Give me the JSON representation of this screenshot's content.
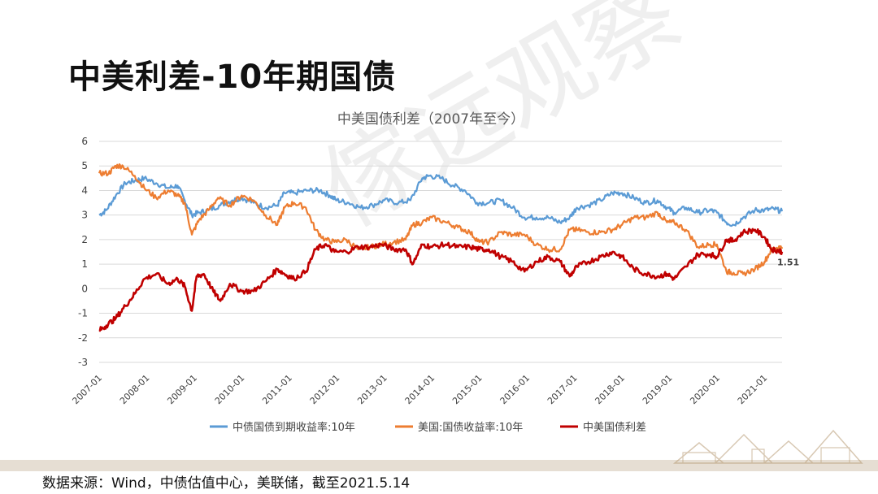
{
  "slide": {
    "title": "中美利差-10年期国债",
    "source": "数据来源：Wind，中债估值中心，美联储，截至2021.5.14",
    "watermark": "傢远观察"
  },
  "colors": {
    "china": "#5b9bd5",
    "us": "#ed7d31",
    "spread": "#c00000",
    "grid": "#d9d9d9",
    "axis_text": "#404040"
  },
  "chart_data": {
    "type": "line",
    "title": "中美国债利差（2007年至今）",
    "ylim": [
      -3,
      6
    ],
    "yticks": [
      6,
      5,
      4,
      3,
      2,
      1,
      0,
      -1,
      -2,
      -3
    ],
    "xlim": [
      2007.0,
      2021.37
    ],
    "xticks": [
      {
        "label": "2007-01",
        "value": 2007
      },
      {
        "label": "2008-01",
        "value": 2008
      },
      {
        "label": "2009-01",
        "value": 2009
      },
      {
        "label": "2010-01",
        "value": 2010
      },
      {
        "label": "2011-01",
        "value": 2011
      },
      {
        "label": "2012-01",
        "value": 2012
      },
      {
        "label": "2013-01",
        "value": 2013
      },
      {
        "label": "2014-01",
        "value": 2014
      },
      {
        "label": "2015-01",
        "value": 2015
      },
      {
        "label": "2016-01",
        "value": 2016
      },
      {
        "label": "2017-01",
        "value": 2017
      },
      {
        "label": "2018-01",
        "value": 2018
      },
      {
        "label": "2019-01",
        "value": 2019
      },
      {
        "label": "2020-01",
        "value": 2020
      },
      {
        "label": "2021-01",
        "value": 2021
      }
    ],
    "grid": true,
    "legend": "bottom",
    "end_label": "1.51",
    "series": [
      {
        "name": "中债国债到期收益率:10年",
        "color_key": "china",
        "points": [
          [
            2007.0,
            3.0
          ],
          [
            2007.15,
            3.2
          ],
          [
            2007.35,
            3.8
          ],
          [
            2007.55,
            4.3
          ],
          [
            2007.75,
            4.4
          ],
          [
            2007.95,
            4.5
          ],
          [
            2008.2,
            4.3
          ],
          [
            2008.45,
            4.1
          ],
          [
            2008.65,
            4.2
          ],
          [
            2008.8,
            3.6
          ],
          [
            2008.95,
            3.0
          ],
          [
            2009.1,
            3.1
          ],
          [
            2009.3,
            3.2
          ],
          [
            2009.55,
            3.4
          ],
          [
            2009.8,
            3.6
          ],
          [
            2010.0,
            3.7
          ],
          [
            2010.25,
            3.5
          ],
          [
            2010.5,
            3.3
          ],
          [
            2010.75,
            3.4
          ],
          [
            2010.9,
            3.9
          ],
          [
            2011.1,
            3.9
          ],
          [
            2011.4,
            4.0
          ],
          [
            2011.65,
            4.0
          ],
          [
            2011.85,
            3.8
          ],
          [
            2012.0,
            3.6
          ],
          [
            2012.25,
            3.5
          ],
          [
            2012.5,
            3.3
          ],
          [
            2012.75,
            3.4
          ],
          [
            2013.0,
            3.6
          ],
          [
            2013.3,
            3.5
          ],
          [
            2013.55,
            3.6
          ],
          [
            2013.8,
            4.5
          ],
          [
            2013.95,
            4.6
          ],
          [
            2014.2,
            4.5
          ],
          [
            2014.45,
            4.2
          ],
          [
            2014.7,
            4.0
          ],
          [
            2014.95,
            3.5
          ],
          [
            2015.2,
            3.5
          ],
          [
            2015.45,
            3.6
          ],
          [
            2015.7,
            3.3
          ],
          [
            2015.95,
            2.9
          ],
          [
            2016.2,
            2.9
          ],
          [
            2016.45,
            2.9
          ],
          [
            2016.7,
            2.7
          ],
          [
            2016.9,
            2.9
          ],
          [
            2017.05,
            3.3
          ],
          [
            2017.3,
            3.4
          ],
          [
            2017.55,
            3.6
          ],
          [
            2017.8,
            3.9
          ],
          [
            2018.0,
            3.9
          ],
          [
            2018.25,
            3.7
          ],
          [
            2018.5,
            3.5
          ],
          [
            2018.75,
            3.6
          ],
          [
            2018.95,
            3.3
          ],
          [
            2019.1,
            3.1
          ],
          [
            2019.35,
            3.3
          ],
          [
            2019.6,
            3.1
          ],
          [
            2019.85,
            3.2
          ],
          [
            2020.0,
            3.1
          ],
          [
            2020.2,
            2.7
          ],
          [
            2020.35,
            2.6
          ],
          [
            2020.55,
            2.9
          ],
          [
            2020.8,
            3.2
          ],
          [
            2021.0,
            3.2
          ],
          [
            2021.2,
            3.25
          ],
          [
            2021.37,
            3.15
          ]
        ]
      },
      {
        "name": "美国:国债收益率:10年",
        "color_key": "us",
        "points": [
          [
            2007.0,
            4.7
          ],
          [
            2007.2,
            4.7
          ],
          [
            2007.35,
            5.0
          ],
          [
            2007.5,
            5.0
          ],
          [
            2007.75,
            4.6
          ],
          [
            2007.95,
            4.1
          ],
          [
            2008.2,
            3.7
          ],
          [
            2008.45,
            4.0
          ],
          [
            2008.65,
            3.8
          ],
          [
            2008.8,
            3.5
          ],
          [
            2008.95,
            2.2
          ],
          [
            2009.1,
            2.8
          ],
          [
            2009.3,
            3.2
          ],
          [
            2009.5,
            3.7
          ],
          [
            2009.75,
            3.4
          ],
          [
            2010.0,
            3.8
          ],
          [
            2010.25,
            3.6
          ],
          [
            2010.5,
            3.0
          ],
          [
            2010.75,
            2.6
          ],
          [
            2010.9,
            3.3
          ],
          [
            2011.1,
            3.5
          ],
          [
            2011.35,
            3.3
          ],
          [
            2011.55,
            2.4
          ],
          [
            2011.75,
            2.0
          ],
          [
            2011.95,
            1.9
          ],
          [
            2012.2,
            2.0
          ],
          [
            2012.45,
            1.6
          ],
          [
            2012.7,
            1.7
          ],
          [
            2012.95,
            1.8
          ],
          [
            2013.2,
            1.9
          ],
          [
            2013.45,
            2.0
          ],
          [
            2013.6,
            2.6
          ],
          [
            2013.8,
            2.7
          ],
          [
            2014.0,
            2.9
          ],
          [
            2014.3,
            2.7
          ],
          [
            2014.55,
            2.5
          ],
          [
            2014.8,
            2.3
          ],
          [
            2015.0,
            1.9
          ],
          [
            2015.2,
            1.9
          ],
          [
            2015.45,
            2.3
          ],
          [
            2015.7,
            2.2
          ],
          [
            2015.95,
            2.2
          ],
          [
            2016.2,
            1.8
          ],
          [
            2016.45,
            1.6
          ],
          [
            2016.7,
            1.6
          ],
          [
            2016.9,
            2.4
          ],
          [
            2017.05,
            2.4
          ],
          [
            2017.3,
            2.3
          ],
          [
            2017.55,
            2.3
          ],
          [
            2017.8,
            2.4
          ],
          [
            2018.0,
            2.6
          ],
          [
            2018.25,
            2.9
          ],
          [
            2018.5,
            2.9
          ],
          [
            2018.75,
            3.1
          ],
          [
            2018.95,
            2.7
          ],
          [
            2019.1,
            2.7
          ],
          [
            2019.35,
            2.4
          ],
          [
            2019.6,
            1.7
          ],
          [
            2019.85,
            1.8
          ],
          [
            2020.0,
            1.8
          ],
          [
            2020.2,
            0.7
          ],
          [
            2020.35,
            0.65
          ],
          [
            2020.55,
            0.6
          ],
          [
            2020.8,
            0.8
          ],
          [
            2021.0,
            1.1
          ],
          [
            2021.15,
            1.6
          ],
          [
            2021.3,
            1.7
          ],
          [
            2021.37,
            1.63
          ]
        ]
      },
      {
        "name": "中美国债利差",
        "color_key": "spread",
        "points": [
          [
            2007.0,
            -1.7
          ],
          [
            2007.15,
            -1.5
          ],
          [
            2007.35,
            -1.2
          ],
          [
            2007.55,
            -0.7
          ],
          [
            2007.75,
            -0.2
          ],
          [
            2007.95,
            0.4
          ],
          [
            2008.2,
            0.6
          ],
          [
            2008.45,
            0.2
          ],
          [
            2008.65,
            0.4
          ],
          [
            2008.8,
            0.1
          ],
          [
            2008.95,
            -0.9
          ],
          [
            2009.05,
            0.5
          ],
          [
            2009.2,
            0.6
          ],
          [
            2009.4,
            -0.1
          ],
          [
            2009.55,
            -0.5
          ],
          [
            2009.75,
            0.2
          ],
          [
            2010.0,
            -0.1
          ],
          [
            2010.25,
            -0.1
          ],
          [
            2010.5,
            0.3
          ],
          [
            2010.75,
            0.8
          ],
          [
            2010.9,
            0.6
          ],
          [
            2011.1,
            0.4
          ],
          [
            2011.35,
            0.7
          ],
          [
            2011.55,
            1.6
          ],
          [
            2011.75,
            1.8
          ],
          [
            2011.95,
            1.5
          ],
          [
            2012.2,
            1.5
          ],
          [
            2012.45,
            1.7
          ],
          [
            2012.7,
            1.7
          ],
          [
            2012.95,
            1.8
          ],
          [
            2013.2,
            1.6
          ],
          [
            2013.45,
            1.6
          ],
          [
            2013.6,
            1.0
          ],
          [
            2013.8,
            1.8
          ],
          [
            2014.0,
            1.7
          ],
          [
            2014.3,
            1.8
          ],
          [
            2014.55,
            1.7
          ],
          [
            2014.8,
            1.7
          ],
          [
            2015.0,
            1.6
          ],
          [
            2015.2,
            1.6
          ],
          [
            2015.45,
            1.3
          ],
          [
            2015.7,
            1.1
          ],
          [
            2015.95,
            0.7
          ],
          [
            2016.2,
            1.1
          ],
          [
            2016.45,
            1.3
          ],
          [
            2016.7,
            1.1
          ],
          [
            2016.9,
            0.5
          ],
          [
            2017.05,
            0.9
          ],
          [
            2017.3,
            1.1
          ],
          [
            2017.55,
            1.3
          ],
          [
            2017.8,
            1.5
          ],
          [
            2018.0,
            1.3
          ],
          [
            2018.25,
            0.8
          ],
          [
            2018.5,
            0.6
          ],
          [
            2018.75,
            0.5
          ],
          [
            2018.95,
            0.6
          ],
          [
            2019.1,
            0.4
          ],
          [
            2019.35,
            0.9
          ],
          [
            2019.6,
            1.4
          ],
          [
            2019.85,
            1.4
          ],
          [
            2020.0,
            1.3
          ],
          [
            2020.2,
            2.0
          ],
          [
            2020.35,
            1.95
          ],
          [
            2020.55,
            2.3
          ],
          [
            2020.8,
            2.4
          ],
          [
            2021.0,
            2.1
          ],
          [
            2021.15,
            1.6
          ],
          [
            2021.3,
            1.55
          ],
          [
            2021.37,
            1.51
          ]
        ]
      }
    ]
  }
}
